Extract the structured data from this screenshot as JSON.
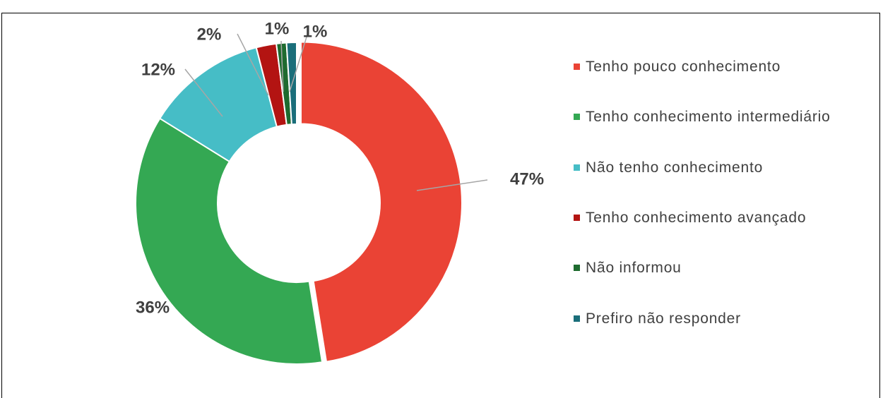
{
  "chart_data": {
    "type": "donut",
    "categories": [
      "Tenho pouco conhecimento",
      "Tenho conhecimento intermediário",
      "Não tenho conhecimento",
      "Tenho conhecimento avançado",
      "Não informou",
      "Prefiro não responder"
    ],
    "values": [
      47,
      36,
      12,
      2,
      1,
      1
    ],
    "value_labels": [
      "47%",
      "36%",
      "12%",
      "2%",
      "1%",
      "1%"
    ],
    "colors": [
      "#ea4335",
      "#34a853",
      "#46bdc6",
      "#b31412",
      "#1e6b2f",
      "#1a6e7a"
    ],
    "legend": "right"
  }
}
